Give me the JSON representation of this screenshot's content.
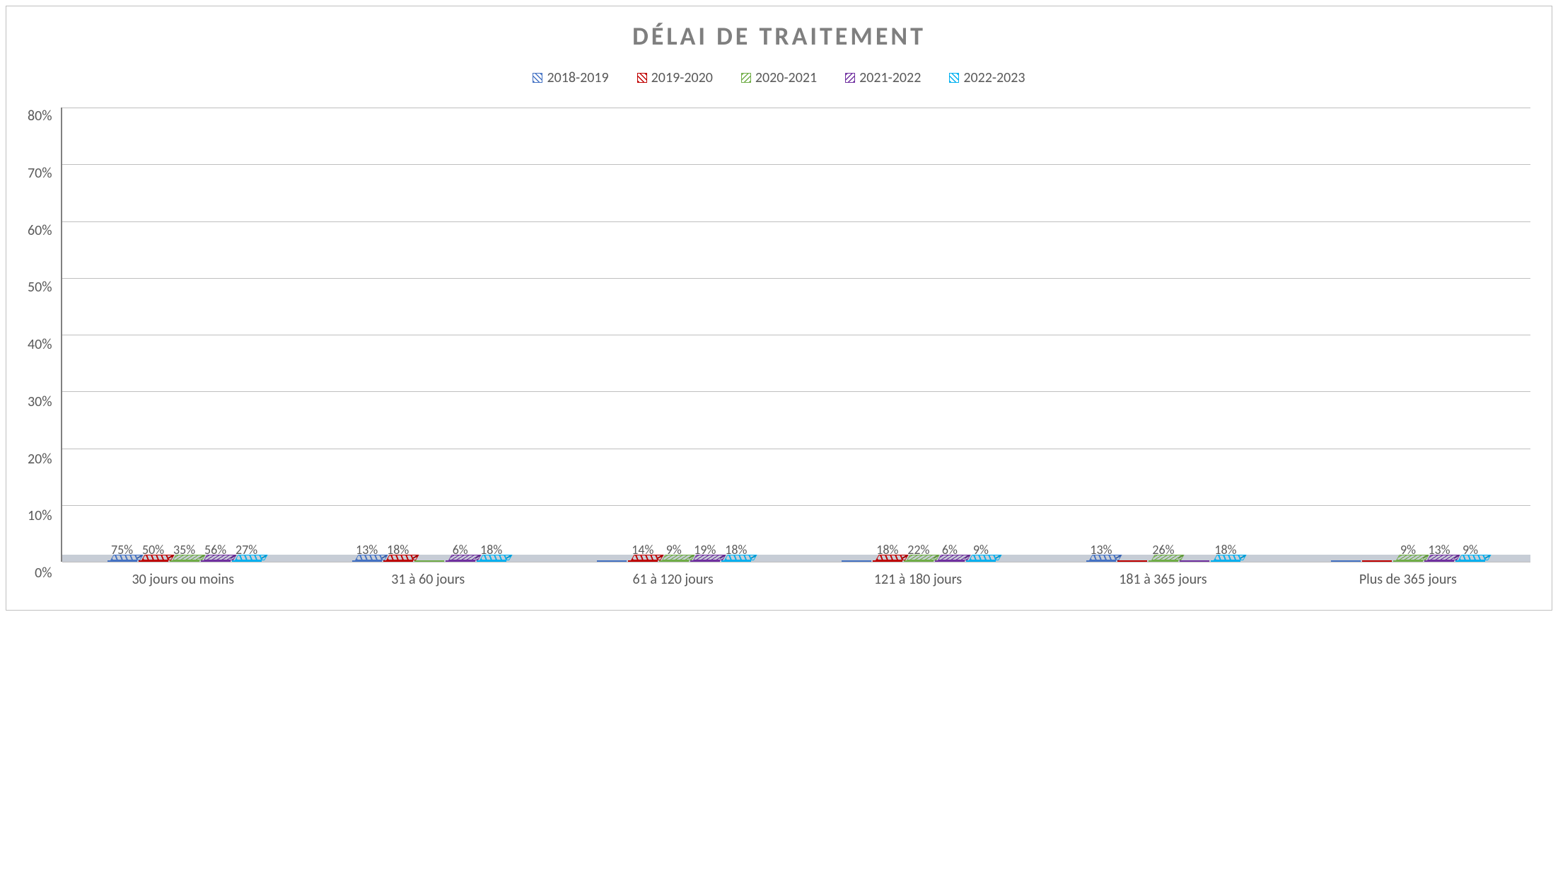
{
  "chart": {
    "type": "bar",
    "title": "DÉLAI DE TRAITEMENT",
    "title_fontsize": 36,
    "title_color": "#7f7f7f",
    "background_color": "#ffffff",
    "border_color": "#bfbfbf",
    "grid_color": "#bfbfbf",
    "axis_color": "#808080",
    "label_color": "#595959",
    "floor_color": "#c7cdd6",
    "label_fontsize": 20,
    "data_label_fontsize": 18,
    "legend_fontsize": 20,
    "ylim": [
      0,
      80
    ],
    "ytick_step": 10,
    "yticks": [
      "0%",
      "10%",
      "20%",
      "30%",
      "40%",
      "50%",
      "60%",
      "70%",
      "80%"
    ],
    "categories": [
      "30 jours ou moins",
      "31 à 60 jours",
      "61 à 120 jours",
      "121 à 180 jours",
      "181 à 365 jours",
      "Plus de 365 jours"
    ],
    "series": [
      {
        "name": "2018-2019",
        "color": "#4472c4",
        "hatch_angle": 45
      },
      {
        "name": "2019-2020",
        "color": "#c00000",
        "hatch_angle": 45
      },
      {
        "name": "2020-2021",
        "color": "#70ad47",
        "hatch_angle": -45
      },
      {
        "name": "2021-2022",
        "color": "#7030a0",
        "hatch_angle": -45
      },
      {
        "name": "2022-2023",
        "color": "#00b0f0",
        "hatch_angle": 45
      }
    ],
    "data": [
      {
        "values": [
          75,
          50,
          35,
          56,
          27
        ],
        "labels": [
          "75%",
          "50%",
          "35%",
          "56%",
          "27%"
        ]
      },
      {
        "values": [
          13,
          18,
          0,
          6,
          18
        ],
        "labels": [
          "13%",
          "18%",
          "",
          "6%",
          "18%"
        ]
      },
      {
        "values": [
          0,
          14,
          9,
          19,
          18
        ],
        "labels": [
          "",
          "14%",
          "9%",
          "19%",
          "18%"
        ]
      },
      {
        "values": [
          0,
          18,
          22,
          6,
          9
        ],
        "labels": [
          "",
          "18%",
          "22%",
          "6%",
          "9%"
        ]
      },
      {
        "values": [
          13,
          0,
          26,
          0,
          18
        ],
        "labels": [
          "13%",
          "",
          "26%",
          "",
          "18%"
        ]
      },
      {
        "values": [
          0,
          0,
          9,
          13,
          9
        ],
        "labels": [
          "",
          "",
          "9%",
          "13%",
          "9%"
        ]
      }
    ]
  }
}
